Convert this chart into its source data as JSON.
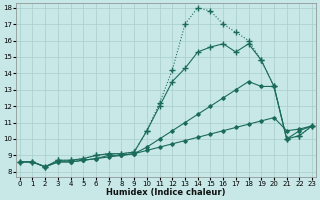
{
  "xlabel": "Humidex (Indice chaleur)",
  "xlim": [
    0,
    23
  ],
  "ylim": [
    8,
    18
  ],
  "xticks": [
    0,
    1,
    2,
    3,
    4,
    5,
    6,
    7,
    8,
    9,
    10,
    11,
    12,
    13,
    14,
    15,
    16,
    17,
    18,
    19,
    20,
    21,
    22,
    23
  ],
  "yticks": [
    8,
    9,
    10,
    11,
    12,
    13,
    14,
    15,
    16,
    17,
    18
  ],
  "bg_color": "#c8e8e8",
  "line_color": "#1a6b5a",
  "lines": [
    {
      "x": [
        0,
        1,
        2,
        3,
        4,
        5,
        6,
        7,
        8,
        9,
        10,
        11,
        12,
        13,
        14,
        15,
        16,
        17,
        18,
        19,
        20,
        21,
        22,
        23
      ],
      "y": [
        8.6,
        8.6,
        8.3,
        8.6,
        8.6,
        8.7,
        8.8,
        8.9,
        9.0,
        9.1,
        9.3,
        9.5,
        9.7,
        9.9,
        10.1,
        10.3,
        10.5,
        10.7,
        10.9,
        11.1,
        11.3,
        10.5,
        10.6,
        10.8
      ],
      "style": "-",
      "marker": "D",
      "ms": 1.8,
      "lw": 0.8
    },
    {
      "x": [
        0,
        1,
        2,
        3,
        4,
        5,
        6,
        7,
        8,
        9,
        10,
        11,
        12,
        13,
        14,
        15,
        16,
        17,
        18,
        19,
        20,
        21,
        22,
        23
      ],
      "y": [
        8.6,
        8.6,
        8.3,
        8.6,
        8.6,
        8.7,
        8.8,
        9.0,
        9.0,
        9.1,
        9.5,
        10.0,
        10.5,
        11.0,
        11.5,
        12.0,
        12.5,
        13.0,
        13.5,
        13.2,
        13.2,
        10.0,
        10.5,
        10.8
      ],
      "style": "-",
      "marker": "D",
      "ms": 1.8,
      "lw": 0.8
    },
    {
      "x": [
        0,
        1,
        2,
        3,
        4,
        5,
        6,
        7,
        8,
        9,
        10,
        11,
        12,
        13,
        14,
        15,
        16,
        17,
        18,
        19,
        20,
        21,
        22,
        23
      ],
      "y": [
        8.6,
        8.6,
        8.3,
        8.7,
        8.7,
        8.8,
        9.0,
        9.1,
        9.1,
        9.2,
        10.5,
        12.0,
        13.5,
        14.3,
        15.3,
        15.6,
        15.8,
        15.3,
        15.8,
        14.8,
        13.2,
        10.0,
        10.2,
        10.8
      ],
      "style": "-",
      "marker": "+",
      "ms": 4.0,
      "lw": 0.8
    },
    {
      "x": [
        0,
        1,
        2,
        3,
        4,
        5,
        6,
        7,
        8,
        9,
        10,
        11,
        12,
        13,
        14,
        15,
        16,
        17,
        18,
        19,
        20,
        21,
        22,
        23
      ],
      "y": [
        8.6,
        8.6,
        8.3,
        8.7,
        8.7,
        8.8,
        9.0,
        9.1,
        9.1,
        9.2,
        10.5,
        12.2,
        14.2,
        17.0,
        18.0,
        17.8,
        17.0,
        16.5,
        16.0,
        14.8,
        13.2,
        10.0,
        10.2,
        10.8
      ],
      "style": ":",
      "marker": "+",
      "ms": 4.0,
      "lw": 0.8
    }
  ]
}
